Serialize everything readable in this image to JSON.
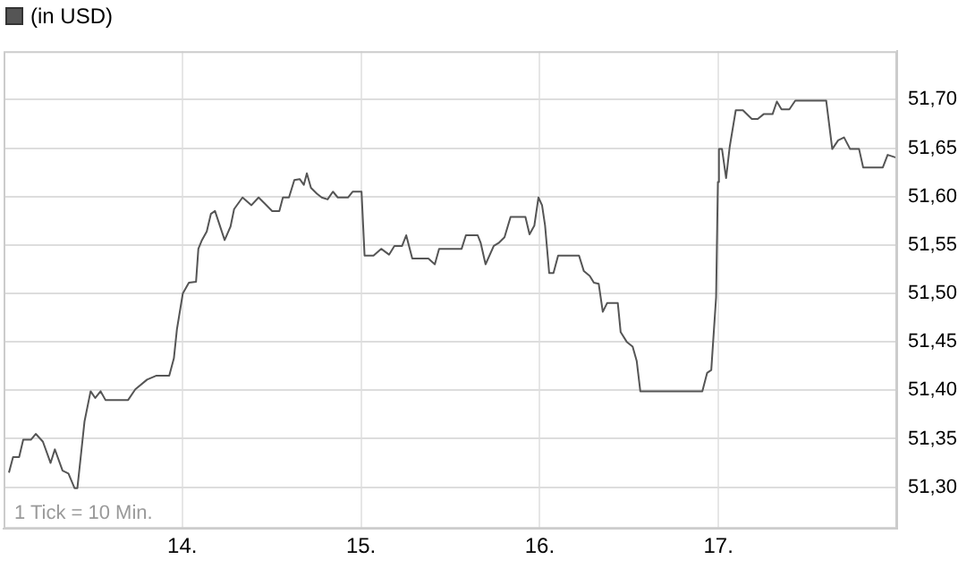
{
  "chart_data": {
    "type": "line",
    "title": "(in USD)",
    "x": [
      13.03,
      13.053,
      13.087,
      13.11,
      13.153,
      13.18,
      13.22,
      13.263,
      13.287,
      13.33,
      13.363,
      13.397,
      13.413,
      13.453,
      13.487,
      13.513,
      13.543,
      13.57,
      13.697,
      13.737,
      13.803,
      13.853,
      13.927,
      13.953,
      13.97,
      14.003,
      14.037,
      14.077,
      14.09,
      14.11,
      14.137,
      14.16,
      14.183,
      14.21,
      14.237,
      14.27,
      14.29,
      14.337,
      14.387,
      14.427,
      14.46,
      14.503,
      14.543,
      14.563,
      14.597,
      14.627,
      14.657,
      14.68,
      14.697,
      14.72,
      14.753,
      14.78,
      14.813,
      14.843,
      14.87,
      14.927,
      14.953,
      15.003,
      15.02,
      15.07,
      15.113,
      15.157,
      15.187,
      15.23,
      15.253,
      15.287,
      15.377,
      15.413,
      15.437,
      15.563,
      15.587,
      15.653,
      15.67,
      15.697,
      15.743,
      15.77,
      15.803,
      15.837,
      15.92,
      15.943,
      15.97,
      15.993,
      16.013,
      16.03,
      16.053,
      16.077,
      16.103,
      16.22,
      16.247,
      16.28,
      16.303,
      16.33,
      16.353,
      16.377,
      16.437,
      16.453,
      16.487,
      16.52,
      16.543,
      16.563,
      16.91,
      16.937,
      16.96,
      16.987,
      16.997,
      17.003,
      17.02,
      17.043,
      17.063,
      17.097,
      17.137,
      17.187,
      17.22,
      17.253,
      17.303,
      17.327,
      17.353,
      17.397,
      17.43,
      17.603,
      17.637,
      17.67,
      17.703,
      17.737,
      17.787,
      17.81,
      17.92,
      17.947,
      17.997
    ],
    "series": [
      {
        "color": "#555555",
        "values": [
          51.315,
          51.331,
          51.331,
          51.349,
          51.349,
          51.355,
          51.347,
          51.325,
          51.339,
          51.317,
          51.314,
          51.299,
          51.299,
          51.368,
          51.399,
          51.392,
          51.399,
          51.39,
          51.39,
          51.401,
          51.411,
          51.415,
          51.415,
          51.433,
          51.463,
          51.5,
          51.511,
          51.512,
          51.546,
          51.555,
          51.564,
          51.582,
          51.585,
          51.57,
          51.555,
          51.569,
          51.587,
          51.599,
          51.591,
          51.599,
          51.593,
          51.585,
          51.585,
          51.599,
          51.599,
          51.617,
          51.618,
          51.612,
          51.624,
          51.609,
          51.603,
          51.599,
          51.597,
          51.605,
          51.599,
          51.599,
          51.605,
          51.605,
          51.539,
          51.539,
          51.546,
          51.54,
          51.549,
          51.549,
          51.56,
          51.536,
          51.536,
          51.53,
          51.546,
          51.546,
          51.56,
          51.56,
          51.552,
          51.53,
          51.549,
          51.552,
          51.558,
          51.579,
          51.579,
          51.561,
          51.57,
          51.599,
          51.591,
          51.57,
          51.521,
          51.521,
          51.539,
          51.539,
          51.523,
          51.518,
          51.511,
          51.51,
          51.481,
          51.49,
          51.49,
          51.46,
          51.45,
          51.445,
          51.43,
          51.399,
          51.399,
          51.418,
          51.421,
          51.496,
          51.615,
          51.649,
          51.649,
          51.619,
          51.651,
          51.689,
          51.689,
          51.68,
          51.68,
          51.685,
          51.685,
          51.698,
          51.69,
          51.69,
          51.699,
          51.699,
          51.649,
          51.658,
          51.661,
          51.649,
          51.649,
          51.63,
          51.63,
          51.643,
          51.64
        ]
      }
    ],
    "xlim": [
      13,
      18
    ],
    "xticks": [
      {
        "value": 14,
        "label": "14."
      },
      {
        "value": 15,
        "label": "15."
      },
      {
        "value": 16,
        "label": "16."
      },
      {
        "value": 17,
        "label": "17."
      }
    ],
    "ylim": [
      51.257,
      51.75
    ],
    "yticks": [
      {
        "value": 51.3,
        "label": "51,30"
      },
      {
        "value": 51.35,
        "label": "51,35"
      },
      {
        "value": 51.4,
        "label": "51,40"
      },
      {
        "value": 51.45,
        "label": "51,45"
      },
      {
        "value": 51.5,
        "label": "51,50"
      },
      {
        "value": 51.55,
        "label": "51,55"
      },
      {
        "value": 51.6,
        "label": "51,60"
      },
      {
        "value": 51.65,
        "label": "51,65"
      },
      {
        "value": 51.7,
        "label": "51,70"
      }
    ],
    "grid": true,
    "legend": false,
    "marker": "none",
    "line_style": "solid",
    "annotations": [
      "1 Tick = 10 Min."
    ]
  }
}
